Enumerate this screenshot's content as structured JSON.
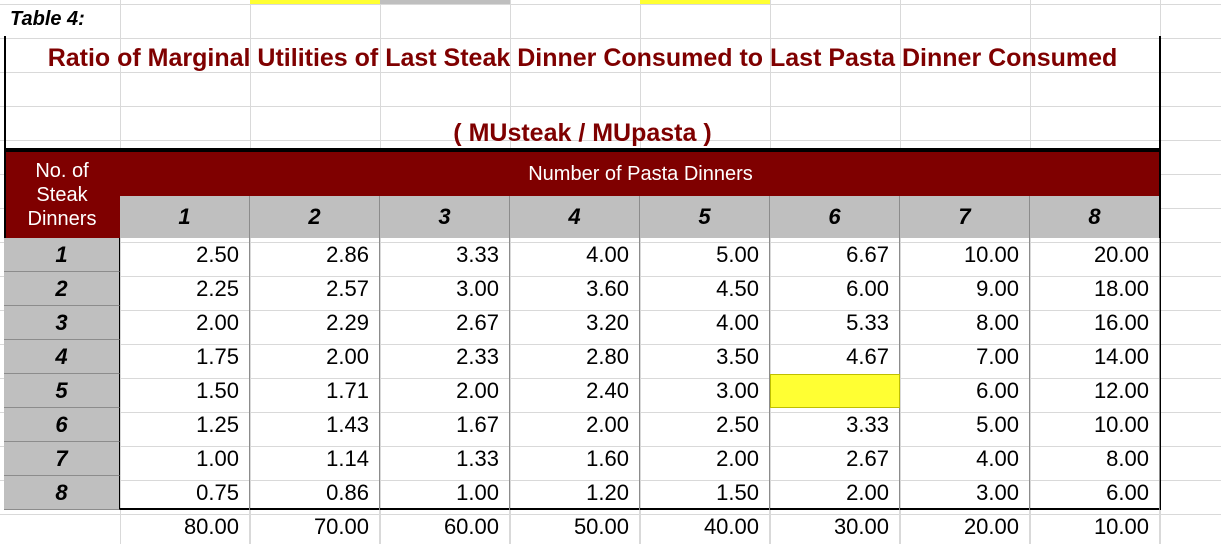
{
  "table_label": "Table 4:",
  "title": "Ratio of Marginal Utilities of Last Steak Dinner Consumed to Last Pasta Dinner Consumed",
  "subtitle": "( MUsteak / MUpasta )",
  "row_header_label": "No. of Steak Dinners",
  "row_header_lines": [
    "No. of",
    "Steak",
    "Dinners"
  ],
  "column_group_label": "Number of Pasta Dinners",
  "columns": [
    "1",
    "2",
    "3",
    "4",
    "5",
    "6",
    "7",
    "8"
  ],
  "rows": [
    {
      "steak": "1",
      "values": [
        "2.50",
        "2.86",
        "3.33",
        "4.00",
        "5.00",
        "6.67",
        "10.00",
        "20.00"
      ]
    },
    {
      "steak": "2",
      "values": [
        "2.25",
        "2.57",
        "3.00",
        "3.60",
        "4.50",
        "6.00",
        "9.00",
        "18.00"
      ]
    },
    {
      "steak": "3",
      "values": [
        "2.00",
        "2.29",
        "2.67",
        "3.20",
        "4.00",
        "5.33",
        "8.00",
        "16.00"
      ]
    },
    {
      "steak": "4",
      "values": [
        "1.75",
        "2.00",
        "2.33",
        "2.80",
        "3.50",
        "4.67",
        "7.00",
        "14.00"
      ]
    },
    {
      "steak": "5",
      "values": [
        "1.50",
        "1.71",
        "2.00",
        "2.40",
        "3.00",
        "",
        "6.00",
        "12.00"
      ]
    },
    {
      "steak": "6",
      "values": [
        "1.25",
        "1.43",
        "1.67",
        "2.00",
        "2.50",
        "3.33",
        "5.00",
        "10.00"
      ]
    },
    {
      "steak": "7",
      "values": [
        "1.00",
        "1.14",
        "1.33",
        "1.60",
        "2.00",
        "2.67",
        "4.00",
        "8.00"
      ]
    },
    {
      "steak": "8",
      "values": [
        "0.75",
        "0.86",
        "1.00",
        "1.20",
        "1.50",
        "2.00",
        "3.00",
        "6.00"
      ]
    }
  ],
  "footer_values": [
    "80.00",
    "70.00",
    "60.00",
    "50.00",
    "40.00",
    "30.00",
    "20.00",
    "10.00"
  ],
  "highlight_cell": {
    "row": "5",
    "column": "6"
  },
  "colors": {
    "title": "#7f0000",
    "header_bar": "#7f0000",
    "header_gray": "#bfbfbf",
    "highlight": "#ffff33"
  }
}
